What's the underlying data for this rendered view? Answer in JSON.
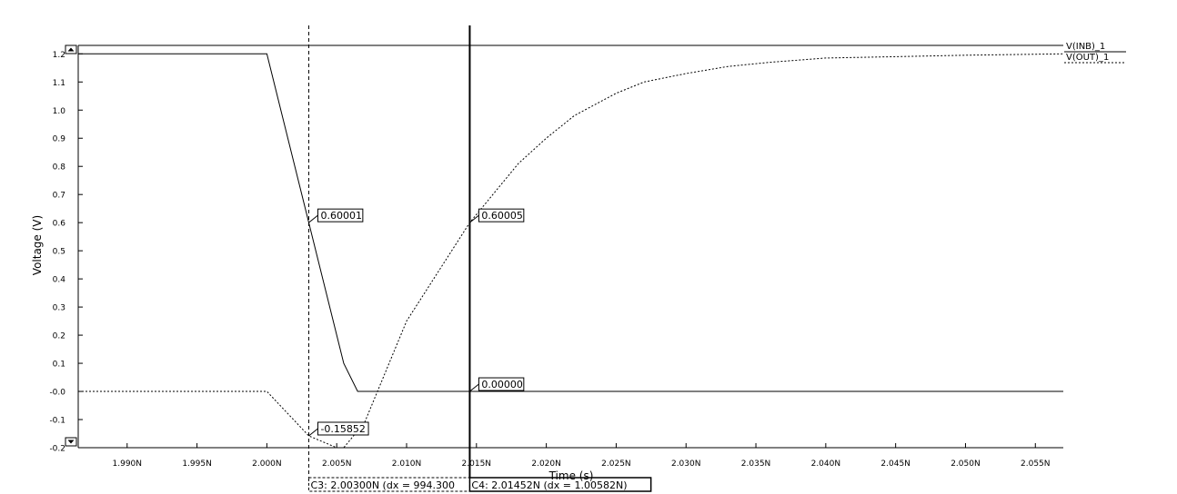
{
  "chart_data": {
    "type": "line",
    "xlabel": "Time (s)",
    "ylabel": "Voltage (V)",
    "xlim": [
      1.9865,
      2.057
    ],
    "ylim": [
      -0.2,
      1.23
    ],
    "x_ticks": [
      1.99,
      1.995,
      2.0,
      2.005,
      2.01,
      2.015,
      2.02,
      2.025,
      2.03,
      2.035,
      2.04,
      2.045,
      2.05,
      2.055
    ],
    "x_tick_labels": [
      "1.990N",
      "1.995N",
      "2.000N",
      "2.005N",
      "2.010N",
      "2.015N",
      "2.020N",
      "2.025N",
      "2.030N",
      "2.035N",
      "2.040N",
      "2.045N",
      "2.050N",
      "2.055N"
    ],
    "y_ticks": [
      1.2,
      1.1,
      1.0,
      0.9,
      0.8,
      0.7,
      0.6,
      0.5,
      0.4,
      0.3,
      0.2,
      0.1,
      0.0,
      -0.1,
      -0.2
    ],
    "y_tick_labels": [
      "1.2",
      "1.1",
      "1.0",
      "0.9",
      "0.8",
      "0.7",
      "0.6",
      "0.5",
      "0.4",
      "0.3",
      "0.2",
      "0.1",
      "-0.0",
      "-0.1",
      "-0.2"
    ],
    "grid": false,
    "legend": "right",
    "series": [
      {
        "name": "V(INB)_1",
        "style": "solid",
        "x": [
          1.9865,
          2.0,
          2.0055,
          2.0065,
          2.057
        ],
        "y": [
          1.2,
          1.2,
          0.1,
          0.0,
          0.0
        ]
      },
      {
        "name": "V(OUT)_1",
        "style": "dotted",
        "x": [
          1.9865,
          2.0,
          2.003,
          2.005,
          2.0055,
          2.007,
          2.01,
          2.01452,
          2.018,
          2.02,
          2.022,
          2.025,
          2.027,
          2.03,
          2.033,
          2.036,
          2.04,
          2.045,
          2.05,
          2.057
        ],
        "y": [
          0.0,
          0.0,
          -0.158,
          -0.2,
          -0.2,
          -0.11,
          0.25,
          0.6,
          0.81,
          0.9,
          0.98,
          1.06,
          1.1,
          1.13,
          1.155,
          1.17,
          1.185,
          1.19,
          1.195,
          1.2
        ]
      }
    ],
    "cursors": [
      {
        "name": "C3",
        "x": 2.003,
        "style": "dashed",
        "readout": "C3: 2.00300N (dx = 994.300",
        "markers": [
          {
            "y": 0.6,
            "label": "0.60001"
          },
          {
            "y": -0.158,
            "label": "-0.15852"
          }
        ]
      },
      {
        "name": "C4",
        "x": 2.01452,
        "style": "solid",
        "readout": "C4: 2.01452N (dx = 1.00582N)",
        "markers": [
          {
            "y": 0.6,
            "label": "0.60005"
          },
          {
            "y": 0.0,
            "label": "0.00000"
          }
        ]
      }
    ],
    "colors": {
      "line": "#000000",
      "background": "#ffffff"
    }
  }
}
